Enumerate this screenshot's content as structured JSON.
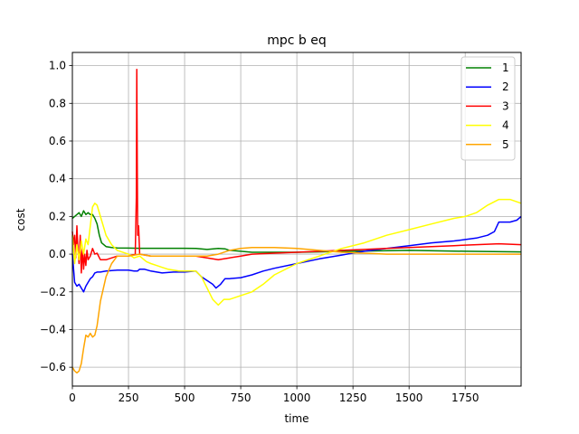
{
  "chart_data": {
    "type": "line",
    "title": "mpc b eq",
    "xlabel": "time",
    "ylabel": "cost",
    "xlim": [
      0,
      1999
    ],
    "ylim": [
      -0.7,
      1.07
    ],
    "xticks": [
      0,
      250,
      500,
      750,
      1000,
      1250,
      1500,
      1750
    ],
    "xtick_labels": [
      "0",
      "250",
      "500",
      "750",
      "1000",
      "1250",
      "1500",
      "1750"
    ],
    "yticks": [
      -0.6,
      -0.4,
      -0.2,
      0.0,
      0.2,
      0.4,
      0.6,
      0.8,
      1.0
    ],
    "ytick_labels": [
      "−0.6",
      "−0.4",
      "−0.2",
      "0.0",
      "0.2",
      "0.4",
      "0.6",
      "0.8",
      "1.0"
    ],
    "grid": true,
    "legend_position": "top-right",
    "series": [
      {
        "name": "1",
        "color": "#008000",
        "points": [
          [
            0,
            0.19
          ],
          [
            10,
            0.2
          ],
          [
            20,
            0.21
          ],
          [
            30,
            0.22
          ],
          [
            40,
            0.2
          ],
          [
            50,
            0.23
          ],
          [
            60,
            0.21
          ],
          [
            70,
            0.22
          ],
          [
            80,
            0.21
          ],
          [
            90,
            0.21
          ],
          [
            100,
            0.19
          ],
          [
            110,
            0.16
          ],
          [
            120,
            0.1
          ],
          [
            130,
            0.06
          ],
          [
            140,
            0.05
          ],
          [
            150,
            0.04
          ],
          [
            175,
            0.035
          ],
          [
            200,
            0.033
          ],
          [
            250,
            0.032
          ],
          [
            300,
            0.031
          ],
          [
            400,
            0.031
          ],
          [
            500,
            0.031
          ],
          [
            550,
            0.03
          ],
          [
            600,
            0.025
          ],
          [
            650,
            0.03
          ],
          [
            680,
            0.028
          ],
          [
            700,
            0.02
          ],
          [
            750,
            0.015
          ],
          [
            800,
            0.01
          ],
          [
            1000,
            0.01
          ],
          [
            1250,
            0.015
          ],
          [
            1500,
            0.02
          ],
          [
            1750,
            0.015
          ],
          [
            1999,
            0.012
          ]
        ]
      },
      {
        "name": "2",
        "color": "#0000ff",
        "points": [
          [
            0,
            0.0
          ],
          [
            10,
            -0.15
          ],
          [
            20,
            -0.17
          ],
          [
            30,
            -0.16
          ],
          [
            40,
            -0.18
          ],
          [
            50,
            -0.2
          ],
          [
            60,
            -0.17
          ],
          [
            70,
            -0.15
          ],
          [
            80,
            -0.13
          ],
          [
            90,
            -0.12
          ],
          [
            100,
            -0.1
          ],
          [
            110,
            -0.095
          ],
          [
            125,
            -0.095
          ],
          [
            150,
            -0.09
          ],
          [
            200,
            -0.085
          ],
          [
            250,
            -0.085
          ],
          [
            275,
            -0.09
          ],
          [
            285,
            -0.09
          ],
          [
            290,
            -0.09
          ],
          [
            300,
            -0.08
          ],
          [
            320,
            -0.08
          ],
          [
            350,
            -0.09
          ],
          [
            400,
            -0.1
          ],
          [
            450,
            -0.095
          ],
          [
            500,
            -0.095
          ],
          [
            550,
            -0.09
          ],
          [
            575,
            -0.12
          ],
          [
            600,
            -0.14
          ],
          [
            625,
            -0.16
          ],
          [
            640,
            -0.18
          ],
          [
            660,
            -0.16
          ],
          [
            680,
            -0.13
          ],
          [
            700,
            -0.13
          ],
          [
            750,
            -0.125
          ],
          [
            800,
            -0.11
          ],
          [
            850,
            -0.09
          ],
          [
            900,
            -0.075
          ],
          [
            1000,
            -0.05
          ],
          [
            1100,
            -0.025
          ],
          [
            1200,
            -0.005
          ],
          [
            1300,
            0.015
          ],
          [
            1400,
            0.03
          ],
          [
            1500,
            0.045
          ],
          [
            1600,
            0.06
          ],
          [
            1700,
            0.07
          ],
          [
            1800,
            0.085
          ],
          [
            1850,
            0.1
          ],
          [
            1880,
            0.12
          ],
          [
            1900,
            0.17
          ],
          [
            1950,
            0.17
          ],
          [
            1980,
            0.18
          ],
          [
            1999,
            0.2
          ]
        ]
      },
      {
        "name": "3",
        "color": "#ff0000",
        "points": [
          [
            0,
            0.12
          ],
          [
            5,
            0.05
          ],
          [
            10,
            0.1
          ],
          [
            15,
            -0.02
          ],
          [
            20,
            0.15
          ],
          [
            25,
            0.02
          ],
          [
            30,
            -0.05
          ],
          [
            35,
            0.1
          ],
          [
            40,
            -0.1
          ],
          [
            45,
            0.03
          ],
          [
            50,
            -0.08
          ],
          [
            55,
            0.0
          ],
          [
            60,
            -0.06
          ],
          [
            65,
            0.02
          ],
          [
            70,
            -0.03
          ],
          [
            80,
            -0.01
          ],
          [
            90,
            0.03
          ],
          [
            100,
            0.0
          ],
          [
            110,
            0.005
          ],
          [
            125,
            -0.03
          ],
          [
            150,
            -0.03
          ],
          [
            200,
            -0.01
          ],
          [
            250,
            -0.01
          ],
          [
            280,
            0.0
          ],
          [
            285,
            0.3
          ],
          [
            287,
            0.98
          ],
          [
            289,
            0.5
          ],
          [
            291,
            0.1
          ],
          [
            295,
            0.15
          ],
          [
            300,
            0.0
          ],
          [
            350,
            -0.01
          ],
          [
            400,
            -0.01
          ],
          [
            500,
            -0.01
          ],
          [
            550,
            -0.01
          ],
          [
            600,
            -0.02
          ],
          [
            650,
            -0.03
          ],
          [
            700,
            -0.02
          ],
          [
            750,
            -0.01
          ],
          [
            800,
            0.0
          ],
          [
            900,
            0.005
          ],
          [
            1000,
            0.01
          ],
          [
            1100,
            0.015
          ],
          [
            1200,
            0.02
          ],
          [
            1300,
            0.025
          ],
          [
            1400,
            0.03
          ],
          [
            1500,
            0.035
          ],
          [
            1600,
            0.04
          ],
          [
            1700,
            0.045
          ],
          [
            1800,
            0.05
          ],
          [
            1900,
            0.055
          ],
          [
            1999,
            0.05
          ]
        ]
      },
      {
        "name": "4",
        "color": "#ffff00",
        "points": [
          [
            0,
            0.1
          ],
          [
            10,
            -0.05
          ],
          [
            20,
            0.05
          ],
          [
            30,
            -0.03
          ],
          [
            40,
            0.07
          ],
          [
            50,
            0.0
          ],
          [
            60,
            0.08
          ],
          [
            70,
            0.05
          ],
          [
            80,
            0.15
          ],
          [
            90,
            0.25
          ],
          [
            100,
            0.27
          ],
          [
            110,
            0.26
          ],
          [
            125,
            0.2
          ],
          [
            150,
            0.1
          ],
          [
            175,
            0.05
          ],
          [
            200,
            0.02
          ],
          [
            250,
            0.0
          ],
          [
            275,
            -0.02
          ],
          [
            300,
            -0.01
          ],
          [
            330,
            -0.04
          ],
          [
            350,
            -0.05
          ],
          [
            375,
            -0.06
          ],
          [
            400,
            -0.07
          ],
          [
            425,
            -0.08
          ],
          [
            475,
            -0.09
          ],
          [
            500,
            -0.09
          ],
          [
            550,
            -0.09
          ],
          [
            575,
            -0.12
          ],
          [
            600,
            -0.18
          ],
          [
            625,
            -0.24
          ],
          [
            650,
            -0.27
          ],
          [
            675,
            -0.24
          ],
          [
            700,
            -0.24
          ],
          [
            750,
            -0.22
          ],
          [
            800,
            -0.2
          ],
          [
            850,
            -0.16
          ],
          [
            900,
            -0.11
          ],
          [
            1000,
            -0.05
          ],
          [
            1100,
            -0.01
          ],
          [
            1200,
            0.03
          ],
          [
            1300,
            0.06
          ],
          [
            1400,
            0.1
          ],
          [
            1500,
            0.13
          ],
          [
            1600,
            0.16
          ],
          [
            1700,
            0.19
          ],
          [
            1750,
            0.2
          ],
          [
            1800,
            0.22
          ],
          [
            1850,
            0.26
          ],
          [
            1900,
            0.29
          ],
          [
            1950,
            0.29
          ],
          [
            1999,
            0.27
          ]
        ]
      },
      {
        "name": "5",
        "color": "#ffa500",
        "points": [
          [
            0,
            -0.6
          ],
          [
            10,
            -0.62
          ],
          [
            20,
            -0.63
          ],
          [
            30,
            -0.62
          ],
          [
            40,
            -0.58
          ],
          [
            50,
            -0.5
          ],
          [
            60,
            -0.43
          ],
          [
            70,
            -0.44
          ],
          [
            80,
            -0.42
          ],
          [
            90,
            -0.44
          ],
          [
            100,
            -0.43
          ],
          [
            110,
            -0.38
          ],
          [
            125,
            -0.25
          ],
          [
            150,
            -0.12
          ],
          [
            175,
            -0.05
          ],
          [
            200,
            -0.01
          ],
          [
            250,
            -0.01
          ],
          [
            300,
            0.0
          ],
          [
            350,
            -0.01
          ],
          [
            400,
            -0.01
          ],
          [
            500,
            -0.01
          ],
          [
            550,
            -0.01
          ],
          [
            600,
            -0.01
          ],
          [
            650,
            0.0
          ],
          [
            700,
            0.02
          ],
          [
            750,
            0.03
          ],
          [
            800,
            0.035
          ],
          [
            900,
            0.035
          ],
          [
            1000,
            0.03
          ],
          [
            1100,
            0.02
          ],
          [
            1200,
            0.01
          ],
          [
            1300,
            0.005
          ],
          [
            1400,
            0.0
          ],
          [
            1500,
            0.0
          ],
          [
            1600,
            0.0
          ],
          [
            1700,
            0.0
          ],
          [
            1800,
            0.0
          ],
          [
            1900,
            0.0
          ],
          [
            1999,
            0.0
          ]
        ]
      }
    ]
  }
}
